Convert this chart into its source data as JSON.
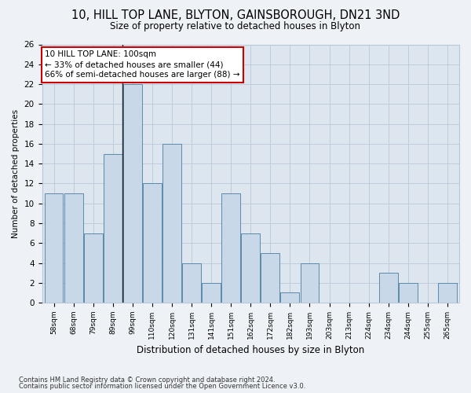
{
  "title1": "10, HILL TOP LANE, BLYTON, GAINSBOROUGH, DN21 3ND",
  "title2": "Size of property relative to detached houses in Blyton",
  "xlabel": "Distribution of detached houses by size in Blyton",
  "ylabel": "Number of detached properties",
  "categories": [
    "58sqm",
    "68sqm",
    "79sqm",
    "89sqm",
    "99sqm",
    "110sqm",
    "120sqm",
    "131sqm",
    "141sqm",
    "151sqm",
    "162sqm",
    "172sqm",
    "182sqm",
    "193sqm",
    "203sqm",
    "213sqm",
    "224sqm",
    "234sqm",
    "244sqm",
    "255sqm",
    "265sqm"
  ],
  "values": [
    11,
    11,
    7,
    15,
    22,
    12,
    16,
    4,
    2,
    11,
    7,
    5,
    1,
    4,
    0,
    0,
    0,
    3,
    2,
    0,
    2
  ],
  "bar_color": "#c8d8e8",
  "bar_edge_color": "#5a8aaa",
  "highlight_index": 4,
  "ylim": [
    0,
    26
  ],
  "yticks": [
    0,
    2,
    4,
    6,
    8,
    10,
    12,
    14,
    16,
    18,
    20,
    22,
    24,
    26
  ],
  "annotation_text_line1": "10 HILL TOP LANE: 100sqm",
  "annotation_text_line2": "← 33% of detached houses are smaller (44)",
  "annotation_text_line3": "66% of semi-detached houses are larger (88) →",
  "annotation_box_color": "#ffffff",
  "annotation_box_edge": "#cc0000",
  "footnote1": "Contains HM Land Registry data © Crown copyright and database right 2024.",
  "footnote2": "Contains public sector information licensed under the Open Government Licence v3.0.",
  "bg_color": "#eef2f6",
  "plot_bg_color": "#dde6ef",
  "grid_color": "#b8c8d8",
  "title1_fontsize": 10.5,
  "title2_fontsize": 8.5
}
